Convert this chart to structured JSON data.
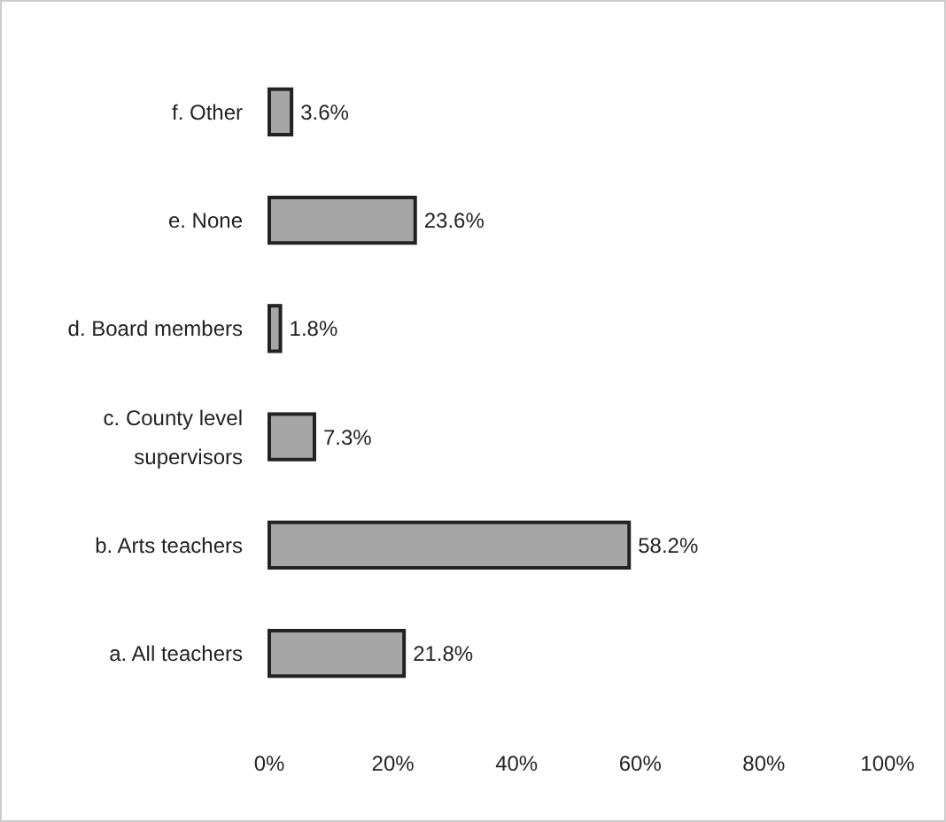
{
  "chart_data": {
    "type": "bar",
    "orientation": "horizontal",
    "categories": [
      "f. Other",
      "e. None",
      "d. Board members",
      "c. County level supervisors",
      "b. Arts teachers",
      "a. All teachers"
    ],
    "values": [
      3.6,
      23.6,
      1.8,
      7.3,
      58.2,
      21.8
    ],
    "value_labels": [
      "3.6%",
      "23.6%",
      "1.8%",
      "7.3%",
      "58.2%",
      "21.8%"
    ],
    "color": "#a6a6a6",
    "xlim": [
      0,
      100
    ],
    "xticks": [
      {
        "value": 0,
        "label": "0%"
      },
      {
        "value": 20,
        "label": "20%"
      },
      {
        "value": 40,
        "label": "40%"
      },
      {
        "value": 60,
        "label": "60%"
      },
      {
        "value": 80,
        "label": "80%"
      },
      {
        "value": 100,
        "label": "100%"
      }
    ],
    "grid": false
  }
}
